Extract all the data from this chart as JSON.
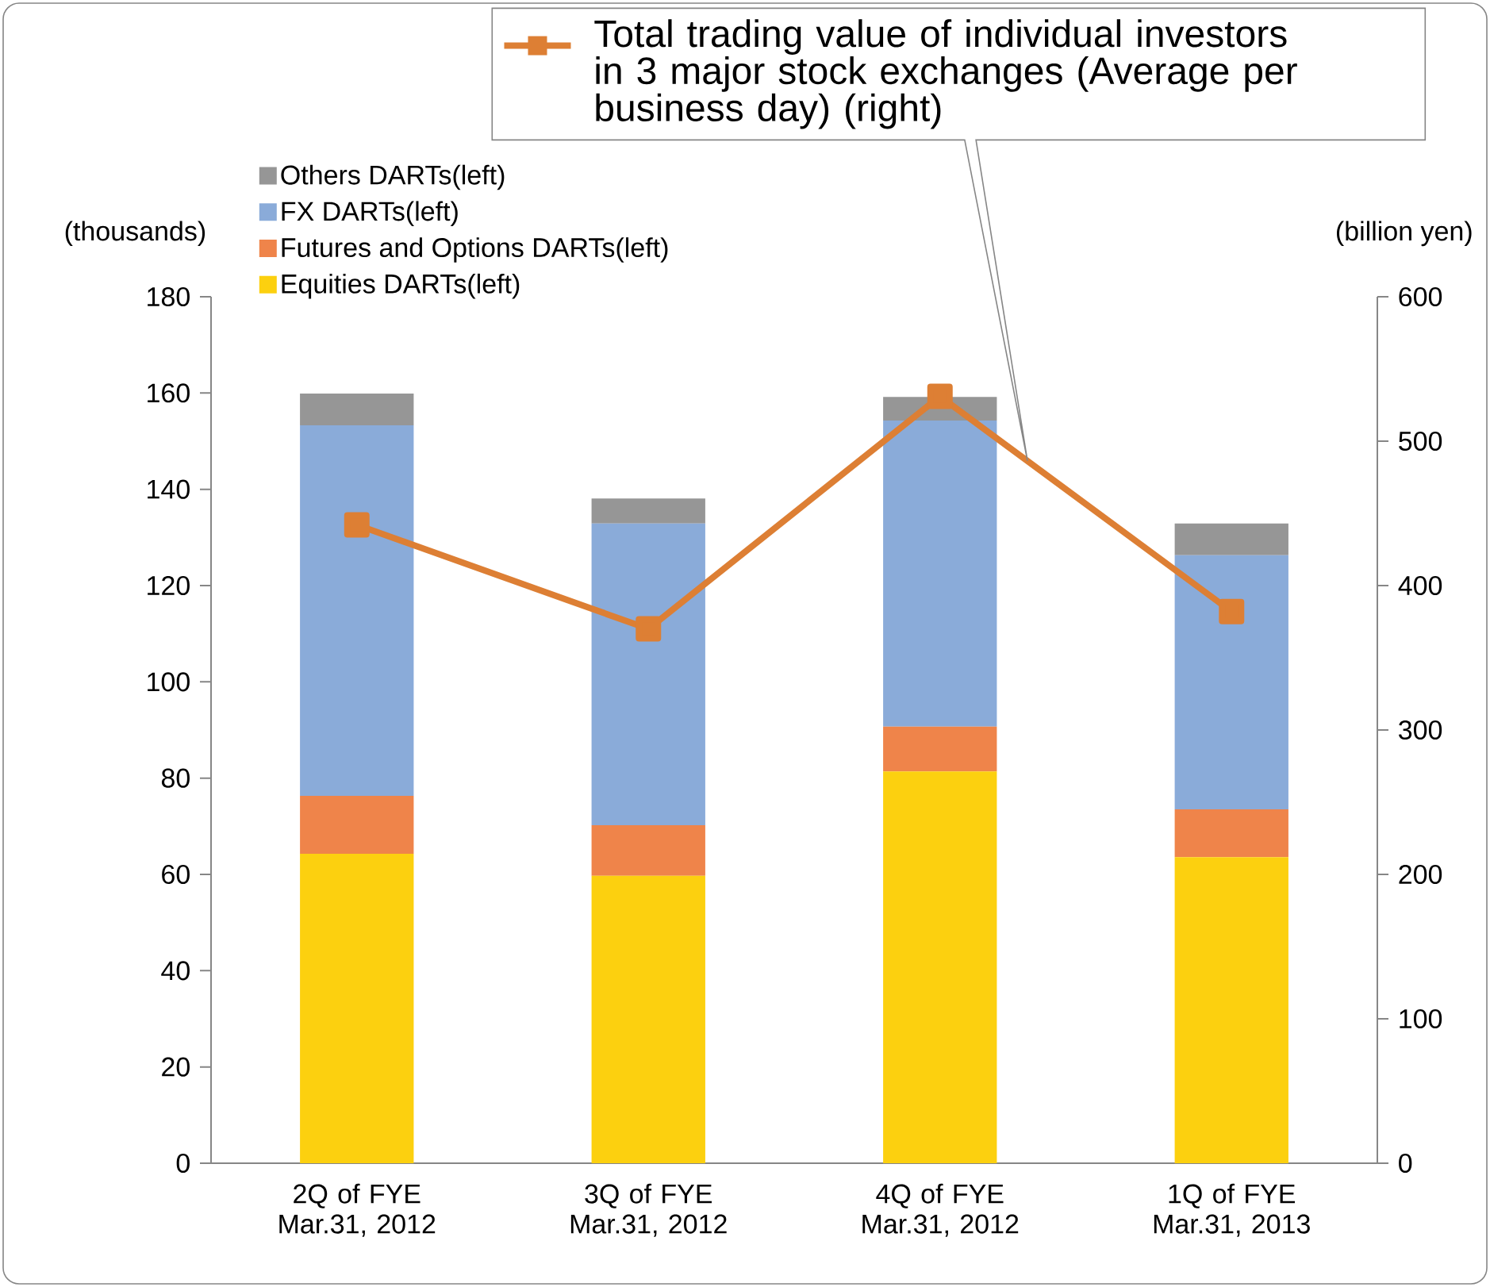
{
  "chart_data": {
    "type": "bar",
    "stacked": true,
    "categories": [
      "2Q of FYE Mar.31, 2012",
      "3Q of FYE Mar.31, 2012",
      "4Q of FYE Mar.31, 2012",
      "1Q of FYE Mar.31, 2013"
    ],
    "ylabel": "(thousands)",
    "y2label": "(billion yen)",
    "ylim": [
      0,
      180
    ],
    "yticks": [
      0,
      20,
      40,
      60,
      80,
      100,
      120,
      140,
      160,
      180
    ],
    "y2lim": [
      0,
      600
    ],
    "y2ticks": [
      0,
      100,
      200,
      300,
      400,
      500,
      600
    ],
    "legend": "top left",
    "grid": false,
    "series": [
      {
        "name": "Equities DARTs(left)",
        "color": "#fcd00f",
        "values": [
          64.3,
          59.7,
          81.4,
          63.6
        ]
      },
      {
        "name": "Futures and Options DARTs(left)",
        "color": "#ef844a",
        "values": [
          12,
          10.5,
          9.3,
          9.9
        ]
      },
      {
        "name": "FX DARTs(left)",
        "color": "#8aabd9",
        "values": [
          77,
          62.7,
          63.6,
          52.8
        ]
      },
      {
        "name": "Others DARTs(left)",
        "color": "#969696",
        "values": [
          6.6,
          5.2,
          4.9,
          6.6
        ]
      },
      {
        "name": "Total trading value of individual investors in 3 major stock exchanges (Average per business day) (right)",
        "type": "line",
        "axis": "y2",
        "marker": "square",
        "color": "#dd7f34",
        "values": [
          442,
          370,
          531,
          382
        ]
      }
    ]
  }
}
